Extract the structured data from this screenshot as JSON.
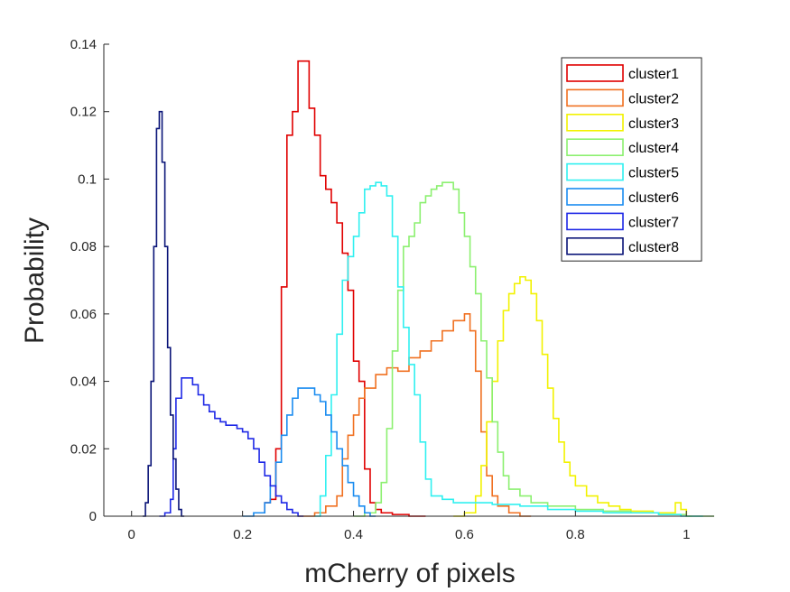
{
  "chart_data": {
    "type": "line",
    "style": "stairs",
    "title": "",
    "xlabel": "mCherry of pixels",
    "ylabel": "Probability",
    "xlim": [
      -0.05,
      1.05
    ],
    "ylim": [
      0,
      0.14
    ],
    "grid": false,
    "legend_position": "top-right",
    "x_ticks": [
      "0",
      "0.2",
      "0.4",
      "0.6",
      "0.8",
      "1"
    ],
    "y_ticks": [
      "0",
      "0.02",
      "0.04",
      "0.06",
      "0.08",
      "0.1",
      "0.12",
      "0.14"
    ],
    "series": [
      {
        "name": "cluster1",
        "color": "#e00000",
        "x": [
          0.23,
          0.24,
          0.25,
          0.26,
          0.27,
          0.28,
          0.29,
          0.3,
          0.31,
          0.32,
          0.33,
          0.34,
          0.35,
          0.36,
          0.37,
          0.38,
          0.39,
          0.4,
          0.41,
          0.42,
          0.43,
          0.44,
          0.45,
          0.47,
          0.5
        ],
        "y": [
          0.001,
          0.004,
          0.005,
          0.02,
          0.068,
          0.113,
          0.12,
          0.135,
          0.135,
          0.121,
          0.113,
          0.101,
          0.097,
          0.093,
          0.087,
          0.078,
          0.067,
          0.046,
          0.04,
          0.014,
          0.004,
          0.002,
          0.001,
          0.0005,
          0.0
        ]
      },
      {
        "name": "cluster2",
        "color": "#f07020",
        "x": [
          0.3,
          0.33,
          0.35,
          0.37,
          0.38,
          0.39,
          0.4,
          0.41,
          0.42,
          0.44,
          0.46,
          0.48,
          0.5,
          0.52,
          0.54,
          0.56,
          0.58,
          0.6,
          0.61,
          0.62,
          0.63,
          0.64,
          0.65,
          0.66,
          0.68,
          0.7
        ],
        "y": [
          0.0,
          0.001,
          0.003,
          0.006,
          0.017,
          0.024,
          0.03,
          0.035,
          0.038,
          0.042,
          0.044,
          0.043,
          0.047,
          0.049,
          0.052,
          0.055,
          0.058,
          0.06,
          0.055,
          0.043,
          0.025,
          0.012,
          0.006,
          0.003,
          0.001,
          0.0
        ]
      },
      {
        "name": "cluster3",
        "color": "#f2f200",
        "x": [
          0.58,
          0.6,
          0.62,
          0.63,
          0.64,
          0.65,
          0.66,
          0.67,
          0.68,
          0.69,
          0.7,
          0.71,
          0.72,
          0.73,
          0.74,
          0.75,
          0.76,
          0.77,
          0.78,
          0.79,
          0.8,
          0.82,
          0.84,
          0.86,
          0.88,
          0.9,
          0.94,
          0.98,
          0.99,
          1.0
        ],
        "y": [
          0.0,
          0.001,
          0.006,
          0.015,
          0.028,
          0.04,
          0.052,
          0.061,
          0.066,
          0.069,
          0.071,
          0.07,
          0.066,
          0.058,
          0.048,
          0.038,
          0.029,
          0.022,
          0.016,
          0.012,
          0.009,
          0.006,
          0.004,
          0.003,
          0.002,
          0.0015,
          0.001,
          0.004,
          0.002,
          0.0
        ]
      },
      {
        "name": "cluster4",
        "color": "#8cf070",
        "x": [
          0.4,
          0.42,
          0.44,
          0.45,
          0.46,
          0.47,
          0.48,
          0.49,
          0.5,
          0.51,
          0.52,
          0.53,
          0.54,
          0.55,
          0.56,
          0.57,
          0.58,
          0.59,
          0.6,
          0.61,
          0.62,
          0.63,
          0.64,
          0.65,
          0.66,
          0.67,
          0.68,
          0.7,
          0.72,
          0.75,
          0.8,
          0.85,
          0.9,
          0.95,
          1.0
        ],
        "y": [
          0.0,
          0.001,
          0.004,
          0.01,
          0.026,
          0.049,
          0.067,
          0.08,
          0.083,
          0.087,
          0.093,
          0.095,
          0.097,
          0.098,
          0.099,
          0.099,
          0.097,
          0.09,
          0.083,
          0.074,
          0.066,
          0.052,
          0.041,
          0.028,
          0.019,
          0.012,
          0.008,
          0.006,
          0.004,
          0.003,
          0.002,
          0.0015,
          0.001,
          0.0005,
          0.0
        ]
      },
      {
        "name": "cluster5",
        "color": "#30f0f0",
        "x": [
          0.33,
          0.34,
          0.35,
          0.36,
          0.37,
          0.38,
          0.39,
          0.4,
          0.41,
          0.42,
          0.43,
          0.44,
          0.45,
          0.46,
          0.47,
          0.48,
          0.49,
          0.5,
          0.51,
          0.52,
          0.53,
          0.54,
          0.56,
          0.58,
          0.6,
          0.65,
          0.7,
          0.75,
          0.8,
          0.85,
          0.9,
          0.95,
          0.99
        ],
        "y": [
          0.0,
          0.006,
          0.018,
          0.036,
          0.054,
          0.07,
          0.077,
          0.083,
          0.09,
          0.097,
          0.098,
          0.099,
          0.098,
          0.095,
          0.083,
          0.068,
          0.056,
          0.045,
          0.036,
          0.022,
          0.011,
          0.006,
          0.005,
          0.004,
          0.004,
          0.0035,
          0.003,
          0.002,
          0.0015,
          0.001,
          0.001,
          0.0005,
          0.0
        ]
      },
      {
        "name": "cluster6",
        "color": "#1a8cf0",
        "x": [
          0.2,
          0.22,
          0.24,
          0.25,
          0.26,
          0.27,
          0.28,
          0.29,
          0.3,
          0.31,
          0.32,
          0.33,
          0.34,
          0.35,
          0.36,
          0.37,
          0.38,
          0.39,
          0.4,
          0.41,
          0.42,
          0.43
        ],
        "y": [
          0.0,
          0.001,
          0.004,
          0.009,
          0.016,
          0.024,
          0.03,
          0.035,
          0.038,
          0.038,
          0.038,
          0.036,
          0.034,
          0.03,
          0.025,
          0.02,
          0.015,
          0.01,
          0.006,
          0.003,
          0.001,
          0.0
        ]
      },
      {
        "name": "cluster7",
        "color": "#1e28e6",
        "x": [
          0.05,
          0.06,
          0.07,
          0.075,
          0.08,
          0.09,
          0.1,
          0.11,
          0.12,
          0.13,
          0.14,
          0.15,
          0.16,
          0.17,
          0.18,
          0.19,
          0.2,
          0.21,
          0.22,
          0.23,
          0.24,
          0.25,
          0.26,
          0.27,
          0.28,
          0.29,
          0.3
        ],
        "y": [
          0.0,
          0.001,
          0.005,
          0.02,
          0.035,
          0.041,
          0.041,
          0.039,
          0.036,
          0.033,
          0.031,
          0.029,
          0.028,
          0.027,
          0.027,
          0.026,
          0.025,
          0.023,
          0.02,
          0.016,
          0.012,
          0.009,
          0.006,
          0.004,
          0.002,
          0.001,
          0.0
        ]
      },
      {
        "name": "cluster8",
        "color": "#0a1478",
        "x": [
          0.02,
          0.025,
          0.03,
          0.035,
          0.04,
          0.045,
          0.05,
          0.055,
          0.06,
          0.065,
          0.07,
          0.075,
          0.08,
          0.085,
          0.09
        ],
        "y": [
          0.0,
          0.004,
          0.015,
          0.04,
          0.08,
          0.115,
          0.12,
          0.105,
          0.08,
          0.05,
          0.03,
          0.017,
          0.008,
          0.002,
          0.0
        ]
      }
    ]
  }
}
